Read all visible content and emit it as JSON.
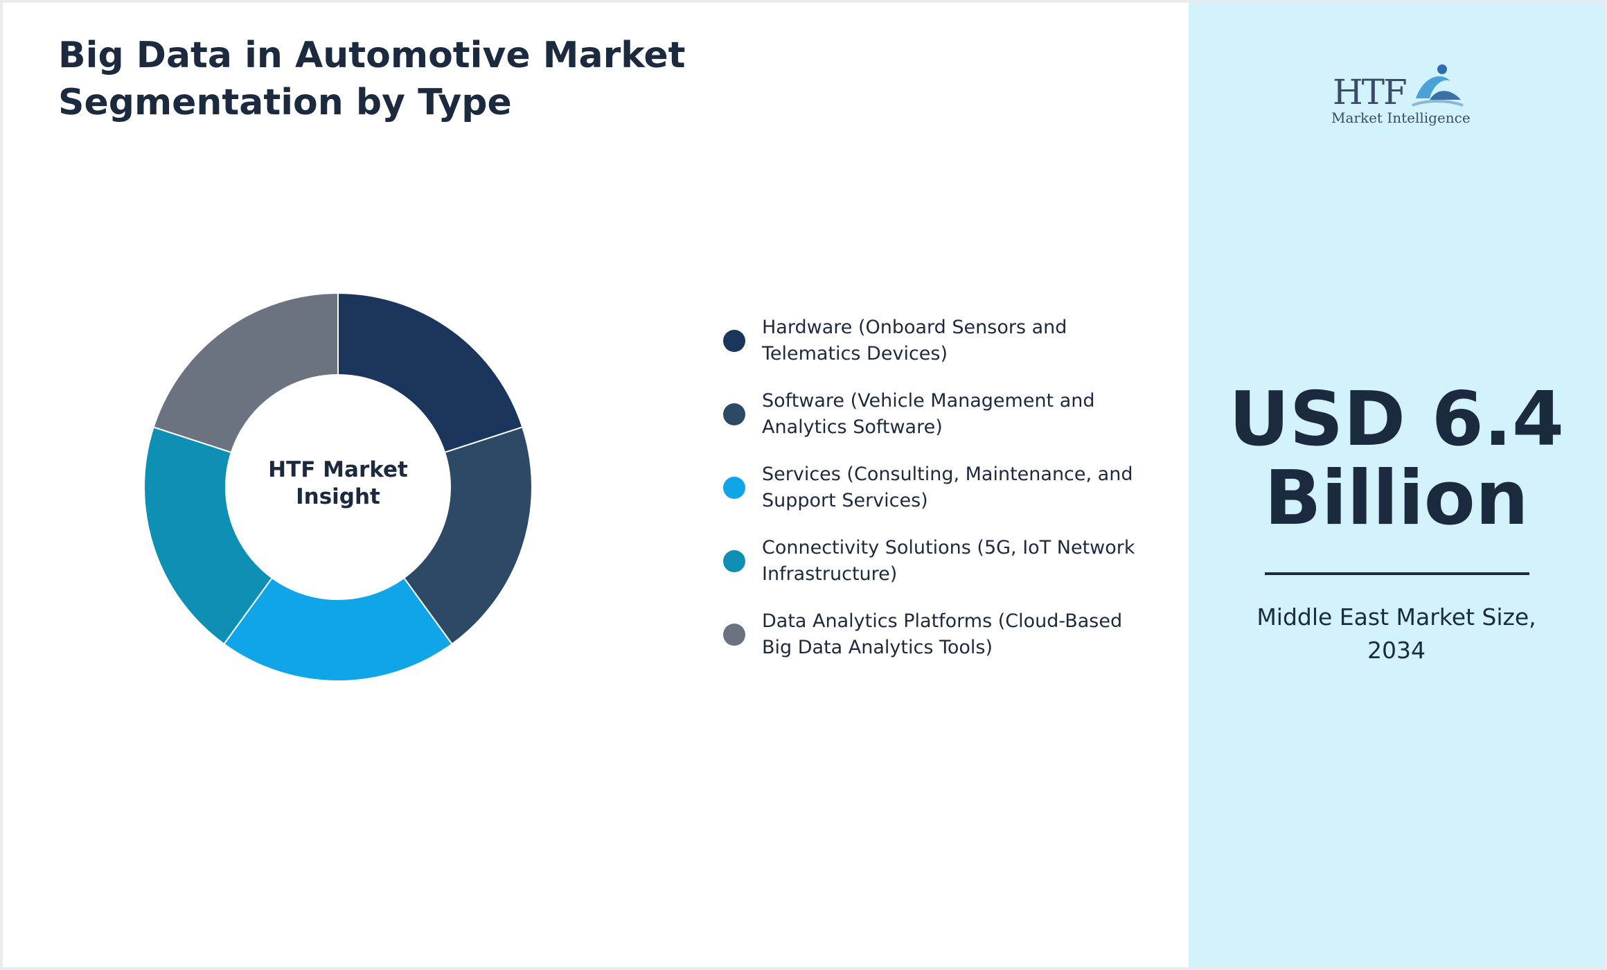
{
  "title": {
    "line1": "Big Data in Automotive Market",
    "line2": "Segmentation by Type"
  },
  "chart_data": {
    "type": "pie",
    "donut": true,
    "center_label": [
      "HTF Market",
      "Insight"
    ],
    "categories": [
      "Hardware (Onboard Sensors and Telematics Devices)",
      "Software (Vehicle Management and Analytics Software)",
      "Services (Consulting, Maintenance, and Support Services)",
      "Connectivity Solutions (5G, IoT Network Infrastructure)",
      "Data Analytics Platforms (Cloud-Based Big Data Analytics Tools)"
    ],
    "values": [
      20,
      20,
      20,
      20,
      20
    ],
    "colors": [
      "#1b365d",
      "#2c4a66",
      "#10a5e8",
      "#0d90b4",
      "#6b7380"
    ],
    "legend_position": "right"
  },
  "legend": [
    {
      "line1": "Hardware (Onboard Sensors and",
      "line2": "Telematics Devices)",
      "color": "#1b365d"
    },
    {
      "line1": "Software (Vehicle Management and",
      "line2": "Analytics Software)",
      "color": "#2c4a66"
    },
    {
      "line1": "Services (Consulting, Maintenance, and",
      "line2": "Support Services)",
      "color": "#10a5e8"
    },
    {
      "line1": "Connectivity Solutions (5G, IoT Network",
      "line2": "Infrastructure)",
      "color": "#0d90b4"
    },
    {
      "line1": "Data Analytics Platforms (Cloud-Based",
      "line2": "Big Data Analytics Tools)",
      "color": "#6b7380"
    }
  ],
  "panel": {
    "logo_text": "HTF",
    "logo_sub": "Market Intelligence",
    "value_line1": "USD 6.4",
    "value_line2": "Billion",
    "caption_line1": "Middle East Market Size,",
    "caption_line2": "2034"
  },
  "colors": {
    "panel_bg": "#d2f3fb",
    "text": "#1c2a3f"
  }
}
